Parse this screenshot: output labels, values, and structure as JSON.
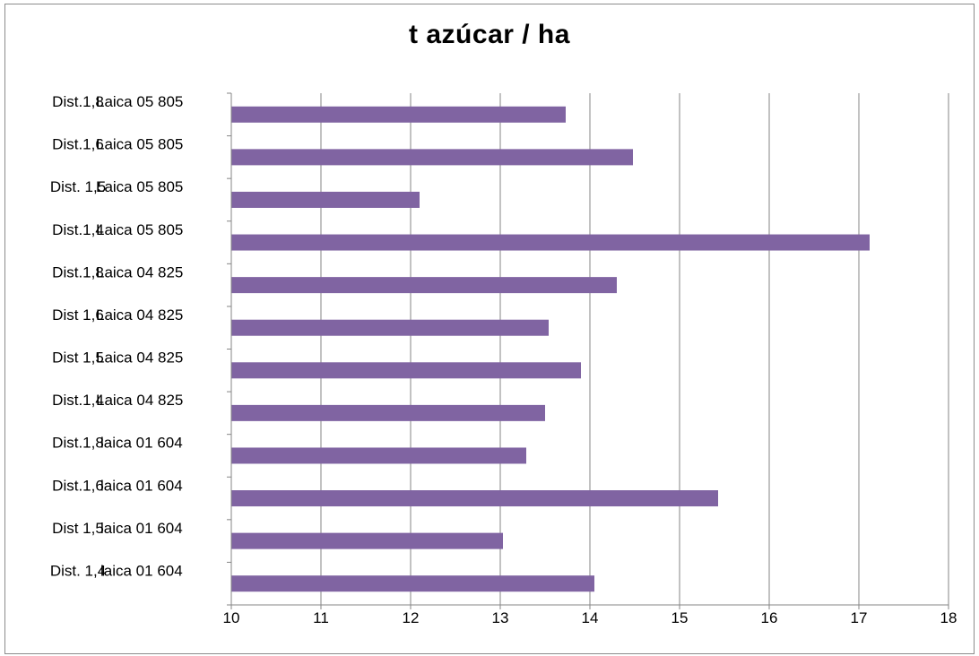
{
  "chart_data": {
    "type": "bar",
    "orientation": "horizontal",
    "title": "t azúcar / ha",
    "xlabel": "",
    "ylabel": "",
    "xlim": [
      10,
      18
    ],
    "xticks": [
      10,
      11,
      12,
      13,
      14,
      15,
      16,
      17,
      18
    ],
    "grid": true,
    "legend": "none",
    "bar_color": "#8064a2",
    "categories": [
      {
        "prefix": "Dist.1,8",
        "variety": "Laica 05 805"
      },
      {
        "prefix": "Dist.1,6",
        "variety": "Laica 05 805"
      },
      {
        "prefix": "Dist. 1,5",
        "variety": "Laica 05 805"
      },
      {
        "prefix": "Dist.1,4",
        "variety": "Laica 05 805"
      },
      {
        "prefix": "Dist.1,8",
        "variety": "Laica 04 825"
      },
      {
        "prefix": "Dist 1,6",
        "variety": "Laica 04 825"
      },
      {
        "prefix": "Dist 1,5",
        "variety": "Laica 04 825"
      },
      {
        "prefix": "Dist.1,4",
        "variety": "Laica 04 825"
      },
      {
        "prefix": "Dist.1,8",
        "variety": "laica 01 604"
      },
      {
        "prefix": "Dist.1,6",
        "variety": "laica 01 604"
      },
      {
        "prefix": "Dist 1,5",
        "variety": "laica 01 604"
      },
      {
        "prefix": "Dist. 1,4",
        "variety": "laica 01 604"
      }
    ],
    "values": [
      13.73,
      14.48,
      12.1,
      17.12,
      14.3,
      13.54,
      13.9,
      13.5,
      13.29,
      15.43,
      13.03,
      14.05
    ]
  }
}
